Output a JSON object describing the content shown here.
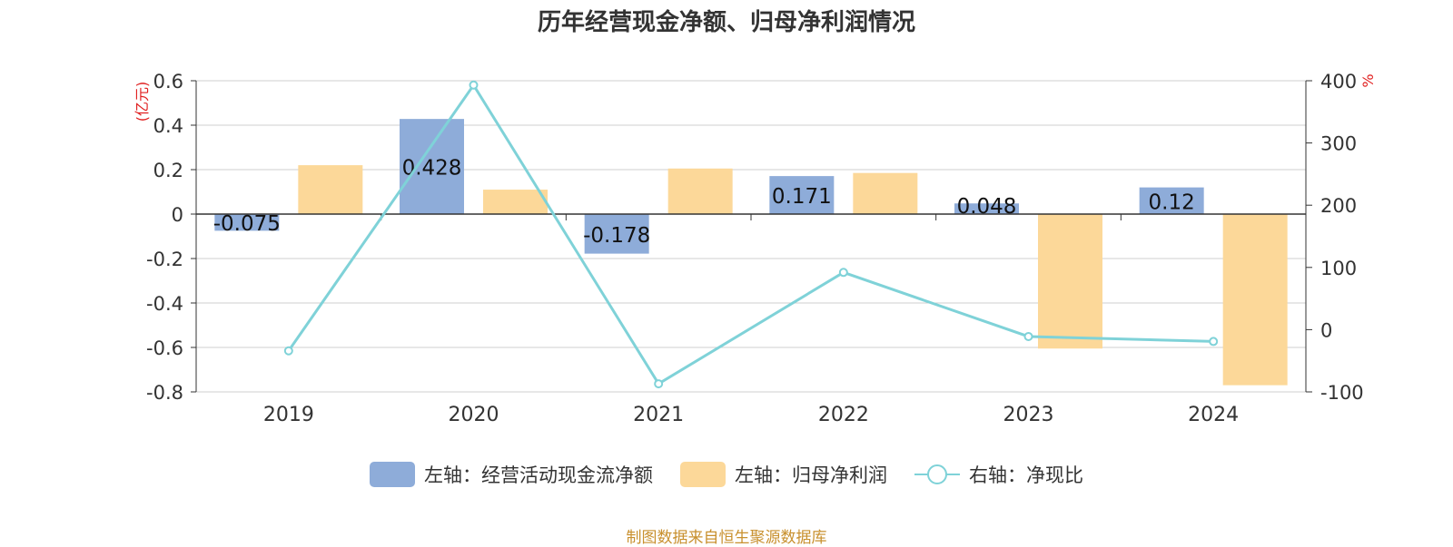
{
  "title": "历年经营现金净额、归母净利润情况",
  "source": "制图数据来自恒生聚源数据库",
  "colors": {
    "cash": "#8eacd9",
    "profit": "#fcd899",
    "ratio": "#7fd2d8",
    "unit": "#e02020",
    "grid": "#cfcfcf",
    "axis": "#333333"
  },
  "chart_data": {
    "type": "bar",
    "title": "历年经营现金净额、归母净利润情况",
    "categories": [
      "2019",
      "2020",
      "2021",
      "2022",
      "2023",
      "2024"
    ],
    "left_axis": {
      "unit": "(亿元)",
      "ylim": [
        -0.8,
        0.6
      ],
      "ticks": [
        "0.6",
        "0.4",
        "0.2",
        "0",
        "-0.2",
        "-0.4",
        "-0.6",
        "-0.8"
      ]
    },
    "right_axis": {
      "unit": "%",
      "ylim": [
        -100,
        400
      ],
      "ticks": [
        "400",
        "300",
        "200",
        "100",
        "0",
        "-100"
      ]
    },
    "series": [
      {
        "name": "左轴：经营活动现金流净额",
        "type": "bar",
        "axis": "left",
        "values": [
          -0.075,
          0.428,
          -0.178,
          0.171,
          0.048,
          0.12
        ],
        "labels": [
          "-0.075",
          "0.428",
          "-0.178",
          "0.171",
          "0.048",
          "0.12"
        ]
      },
      {
        "name": "左轴：归母净利润",
        "type": "bar",
        "axis": "left",
        "values": [
          0.22,
          0.11,
          0.205,
          0.185,
          -0.605,
          -0.77
        ]
      },
      {
        "name": "右轴：净现比",
        "type": "line",
        "axis": "right",
        "values": [
          -34,
          393,
          -87,
          92,
          -11,
          -19
        ]
      }
    ],
    "grid": true,
    "legend": "bottom"
  }
}
